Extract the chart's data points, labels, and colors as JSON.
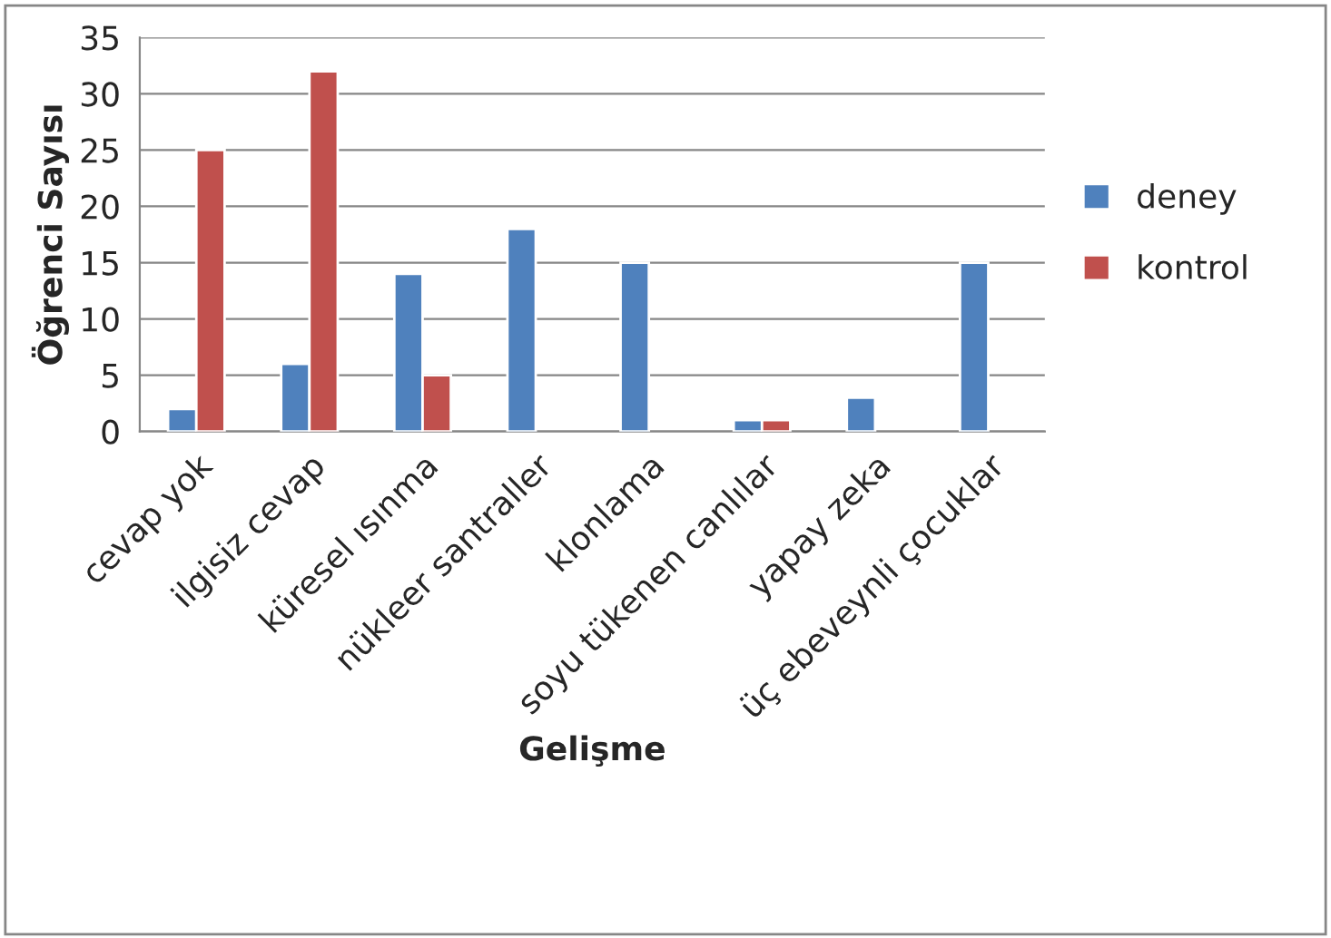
{
  "chart_data": {
    "type": "bar",
    "xlabel": "Gelişme",
    "ylabel": "Öğrenci Sayısı",
    "categories": [
      "cevap yok",
      "ilgisiz cevap",
      "küresel ısınma",
      "nükleer santraller",
      "klonlama",
      "soyu tükenen canlılar",
      "yapay zeka",
      "üç ebeveynli çocuklar"
    ],
    "series": [
      {
        "name": "deney",
        "color": "#4f81bd",
        "values": [
          2,
          6,
          14,
          18,
          15,
          1,
          3,
          15
        ]
      },
      {
        "name": "kontrol",
        "color": "#c0504d",
        "values": [
          25,
          32,
          5,
          null,
          null,
          1,
          null,
          null
        ]
      }
    ],
    "ylim": [
      0,
      35
    ],
    "yticks": [
      0,
      5,
      10,
      15,
      20,
      25,
      30,
      35
    ],
    "grid": "y",
    "legend": "right"
  }
}
